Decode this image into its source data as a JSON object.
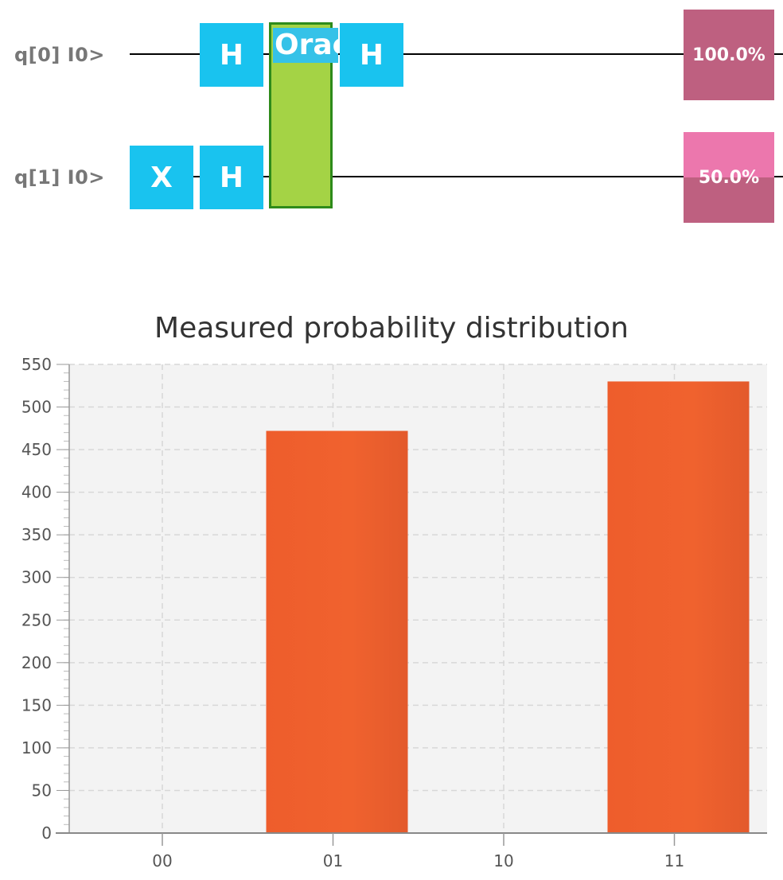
{
  "circuit": {
    "qubits": [
      {
        "label": "q[0] I0>",
        "measurement": "100.0%",
        "meas_fill_fraction": 1.0
      },
      {
        "label": "q[1] I0>",
        "measurement": "50.0%",
        "meas_fill_fraction": 0.5
      }
    ],
    "gates": {
      "x_q1": "X",
      "h_q0_a": "H",
      "h_q1": "H",
      "oracle": "Oracle",
      "h_q0_b": "H"
    },
    "colors": {
      "gate": "#19c3ef",
      "oracle_fill": "#a4d345",
      "oracle_border": "#2e8b1a",
      "measure_dark": "#be6080",
      "measure_light": "#ec77ad"
    }
  },
  "chart_data": {
    "type": "bar",
    "title": "Measured probability distribution",
    "categories": [
      "00",
      "01",
      "10",
      "11"
    ],
    "values": [
      0,
      472,
      0,
      530
    ],
    "ylim": [
      0,
      550
    ],
    "yticks": [
      0,
      50,
      100,
      150,
      200,
      250,
      300,
      350,
      400,
      450,
      500,
      550
    ],
    "xlabel": "",
    "ylabel": "",
    "grid": true,
    "bar_color": "#f0622e"
  }
}
